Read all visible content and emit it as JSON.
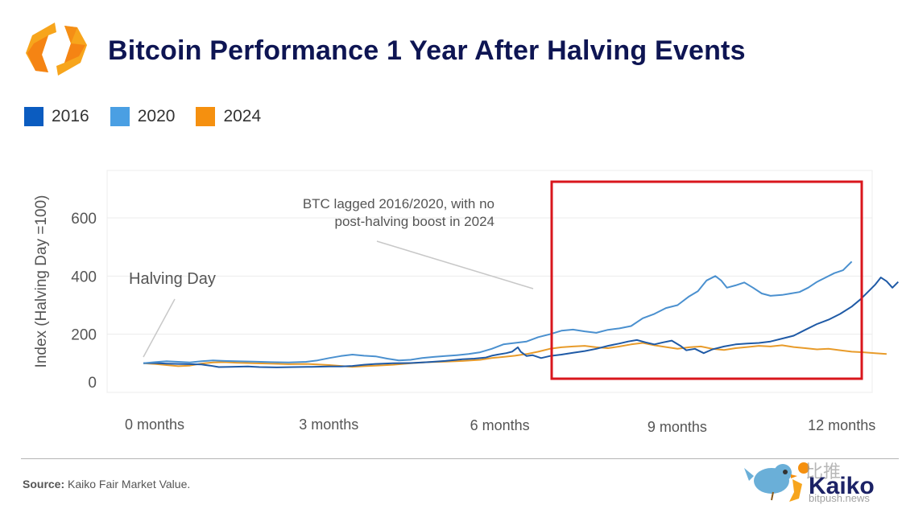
{
  "header": {
    "title": "Bitcoin Performance 1 Year After Halving Events"
  },
  "legend": [
    {
      "label": "2016",
      "color": "#0b5cc0"
    },
    {
      "label": "2020",
      "color": "#4a9fe3"
    },
    {
      "label": "2024",
      "color": "#f5900f"
    }
  ],
  "footer": {
    "source_label": "Source:",
    "source_text": "Kaiko Fair Market Value.",
    "brand": "Kaiko",
    "watermark_cn": "比推",
    "watermark_url": "bitpush.news"
  },
  "highlight_box_color": "#d9161c",
  "chart_data": {
    "type": "line",
    "title": "Bitcoin Performance 1 Year After Halving Events",
    "xlabel": "",
    "ylabel": "Index (Halving Day =100)",
    "xlim": [
      0,
      12.6
    ],
    "ylim": [
      0,
      760
    ],
    "grid": true,
    "legend_position": "top-left",
    "x_ticks": [
      {
        "value": 0,
        "label": "0 months"
      },
      {
        "value": 3,
        "label": "3 months"
      },
      {
        "value": 6,
        "label": "6 months"
      },
      {
        "value": 9,
        "label": "9 months"
      },
      {
        "value": 12,
        "label": "12 months"
      }
    ],
    "y_ticks": [
      {
        "value": 0,
        "label": "0"
      },
      {
        "value": 200,
        "label": "200"
      },
      {
        "value": 400,
        "label": "400"
      },
      {
        "value": 600,
        "label": "600"
      }
    ],
    "annotations": [
      {
        "text": "Halving Day",
        "points_to": [
          0,
          120
        ]
      },
      {
        "text_lines": [
          "BTC lagged 2016/2020, with no",
          "post-halving boost in 2024"
        ],
        "points_to": [
          6.8,
          355
        ]
      }
    ],
    "highlight_region": {
      "x_from": 7.0,
      "x_to": 12.4,
      "y_from": 40,
      "y_to": 730
    },
    "series": [
      {
        "name": "2016",
        "color": "#1f5aa6",
        "points": [
          [
            0,
            100
          ],
          [
            0.2,
            101
          ],
          [
            0.4,
            99
          ],
          [
            0.6,
            98
          ],
          [
            0.8,
            97
          ],
          [
            1.0,
            96
          ],
          [
            1.15,
            92
          ],
          [
            1.3,
            87
          ],
          [
            1.5,
            88
          ],
          [
            1.8,
            89
          ],
          [
            2.0,
            87
          ],
          [
            2.3,
            86
          ],
          [
            2.6,
            87
          ],
          [
            2.9,
            88
          ],
          [
            3.2,
            89
          ],
          [
            3.4,
            89
          ],
          [
            3.6,
            91
          ],
          [
            3.8,
            95
          ],
          [
            4.0,
            98
          ],
          [
            4.3,
            100
          ],
          [
            4.6,
            101
          ],
          [
            4.9,
            104
          ],
          [
            5.2,
            108
          ],
          [
            5.5,
            114
          ],
          [
            5.7,
            116
          ],
          [
            5.9,
            120
          ],
          [
            6.0,
            126
          ],
          [
            6.1,
            130
          ],
          [
            6.25,
            135
          ],
          [
            6.35,
            140
          ],
          [
            6.45,
            155
          ],
          [
            6.5,
            140
          ],
          [
            6.6,
            125
          ],
          [
            6.7,
            128
          ],
          [
            6.85,
            118
          ],
          [
            7.0,
            125
          ],
          [
            7.2,
            130
          ],
          [
            7.4,
            136
          ],
          [
            7.6,
            142
          ],
          [
            7.8,
            150
          ],
          [
            8.0,
            160
          ],
          [
            8.2,
            168
          ],
          [
            8.35,
            175
          ],
          [
            8.5,
            180
          ],
          [
            8.65,
            172
          ],
          [
            8.8,
            165
          ],
          [
            8.95,
            172
          ],
          [
            9.1,
            178
          ],
          [
            9.25,
            160
          ],
          [
            9.35,
            145
          ],
          [
            9.5,
            150
          ],
          [
            9.65,
            135
          ],
          [
            9.8,
            148
          ],
          [
            10.0,
            158
          ],
          [
            10.2,
            165
          ],
          [
            10.4,
            168
          ],
          [
            10.6,
            170
          ],
          [
            10.8,
            175
          ],
          [
            11.0,
            185
          ],
          [
            11.2,
            195
          ],
          [
            11.4,
            215
          ],
          [
            11.6,
            235
          ],
          [
            11.8,
            250
          ],
          [
            12.0,
            270
          ],
          [
            12.2,
            295
          ],
          [
            12.35,
            320
          ],
          [
            12.5,
            350
          ],
          [
            12.6,
            370
          ],
          [
            12.7,
            395
          ],
          [
            12.8,
            382
          ],
          [
            12.9,
            360
          ],
          [
            13.0,
            380
          ]
        ]
      },
      {
        "name": "2020",
        "color": "#4a90cf",
        "points": [
          [
            0,
            100
          ],
          [
            0.2,
            104
          ],
          [
            0.4,
            107
          ],
          [
            0.6,
            105
          ],
          [
            0.8,
            103
          ],
          [
            1.0,
            107
          ],
          [
            1.2,
            110
          ],
          [
            1.4,
            108
          ],
          [
            1.6,
            107
          ],
          [
            1.9,
            106
          ],
          [
            2.2,
            104
          ],
          [
            2.5,
            103
          ],
          [
            2.8,
            105
          ],
          [
            3.0,
            110
          ],
          [
            3.2,
            118
          ],
          [
            3.4,
            125
          ],
          [
            3.6,
            130
          ],
          [
            3.8,
            126
          ],
          [
            4.0,
            124
          ],
          [
            4.2,
            116
          ],
          [
            4.4,
            110
          ],
          [
            4.6,
            112
          ],
          [
            4.8,
            118
          ],
          [
            5.0,
            122
          ],
          [
            5.2,
            125
          ],
          [
            5.4,
            128
          ],
          [
            5.6,
            132
          ],
          [
            5.8,
            138
          ],
          [
            6.0,
            150
          ],
          [
            6.2,
            165
          ],
          [
            6.4,
            170
          ],
          [
            6.6,
            175
          ],
          [
            6.8,
            190
          ],
          [
            7.0,
            200
          ],
          [
            7.2,
            212
          ],
          [
            7.4,
            216
          ],
          [
            7.6,
            210
          ],
          [
            7.8,
            205
          ],
          [
            8.0,
            215
          ],
          [
            8.2,
            220
          ],
          [
            8.4,
            228
          ],
          [
            8.6,
            255
          ],
          [
            8.8,
            270
          ],
          [
            9.0,
            290
          ],
          [
            9.2,
            300
          ],
          [
            9.4,
            330
          ],
          [
            9.55,
            348
          ],
          [
            9.7,
            385
          ],
          [
            9.85,
            400
          ],
          [
            9.95,
            385
          ],
          [
            10.05,
            360
          ],
          [
            10.2,
            368
          ],
          [
            10.35,
            378
          ],
          [
            10.5,
            360
          ],
          [
            10.65,
            340
          ],
          [
            10.8,
            332
          ],
          [
            11.0,
            335
          ],
          [
            11.15,
            340
          ],
          [
            11.3,
            345
          ],
          [
            11.45,
            360
          ],
          [
            11.6,
            380
          ],
          [
            11.75,
            395
          ],
          [
            11.9,
            410
          ],
          [
            12.05,
            420
          ],
          [
            12.2,
            450
          ]
        ]
      },
      {
        "name": "2024",
        "color": "#e89b2a",
        "points": [
          [
            0,
            100
          ],
          [
            0.2,
            98
          ],
          [
            0.4,
            94
          ],
          [
            0.6,
            90
          ],
          [
            0.8,
            92
          ],
          [
            1.0,
            99
          ],
          [
            1.2,
            103
          ],
          [
            1.4,
            104
          ],
          [
            1.6,
            102
          ],
          [
            1.9,
            100
          ],
          [
            2.2,
            99
          ],
          [
            2.5,
            97
          ],
          [
            2.8,
            98
          ],
          [
            3.0,
            96
          ],
          [
            3.2,
            94
          ],
          [
            3.4,
            91
          ],
          [
            3.6,
            88
          ],
          [
            3.8,
            90
          ],
          [
            4.0,
            92
          ],
          [
            4.3,
            95
          ],
          [
            4.6,
            100
          ],
          [
            4.9,
            104
          ],
          [
            5.2,
            106
          ],
          [
            5.5,
            108
          ],
          [
            5.8,
            112
          ],
          [
            6.0,
            118
          ],
          [
            6.2,
            122
          ],
          [
            6.4,
            126
          ],
          [
            6.6,
            132
          ],
          [
            6.8,
            140
          ],
          [
            7.0,
            150
          ],
          [
            7.2,
            155
          ],
          [
            7.4,
            158
          ],
          [
            7.6,
            160
          ],
          [
            7.8,
            155
          ],
          [
            8.0,
            152
          ],
          [
            8.2,
            158
          ],
          [
            8.4,
            165
          ],
          [
            8.6,
            170
          ],
          [
            8.8,
            162
          ],
          [
            9.0,
            156
          ],
          [
            9.2,
            150
          ],
          [
            9.4,
            155
          ],
          [
            9.6,
            158
          ],
          [
            9.8,
            150
          ],
          [
            10.0,
            146
          ],
          [
            10.2,
            152
          ],
          [
            10.4,
            156
          ],
          [
            10.6,
            160
          ],
          [
            10.8,
            158
          ],
          [
            11.0,
            162
          ],
          [
            11.2,
            156
          ],
          [
            11.4,
            152
          ],
          [
            11.6,
            148
          ],
          [
            11.8,
            150
          ],
          [
            12.0,
            145
          ],
          [
            12.2,
            140
          ],
          [
            12.4,
            138
          ],
          [
            12.6,
            135
          ],
          [
            12.8,
            132
          ]
        ]
      }
    ]
  }
}
